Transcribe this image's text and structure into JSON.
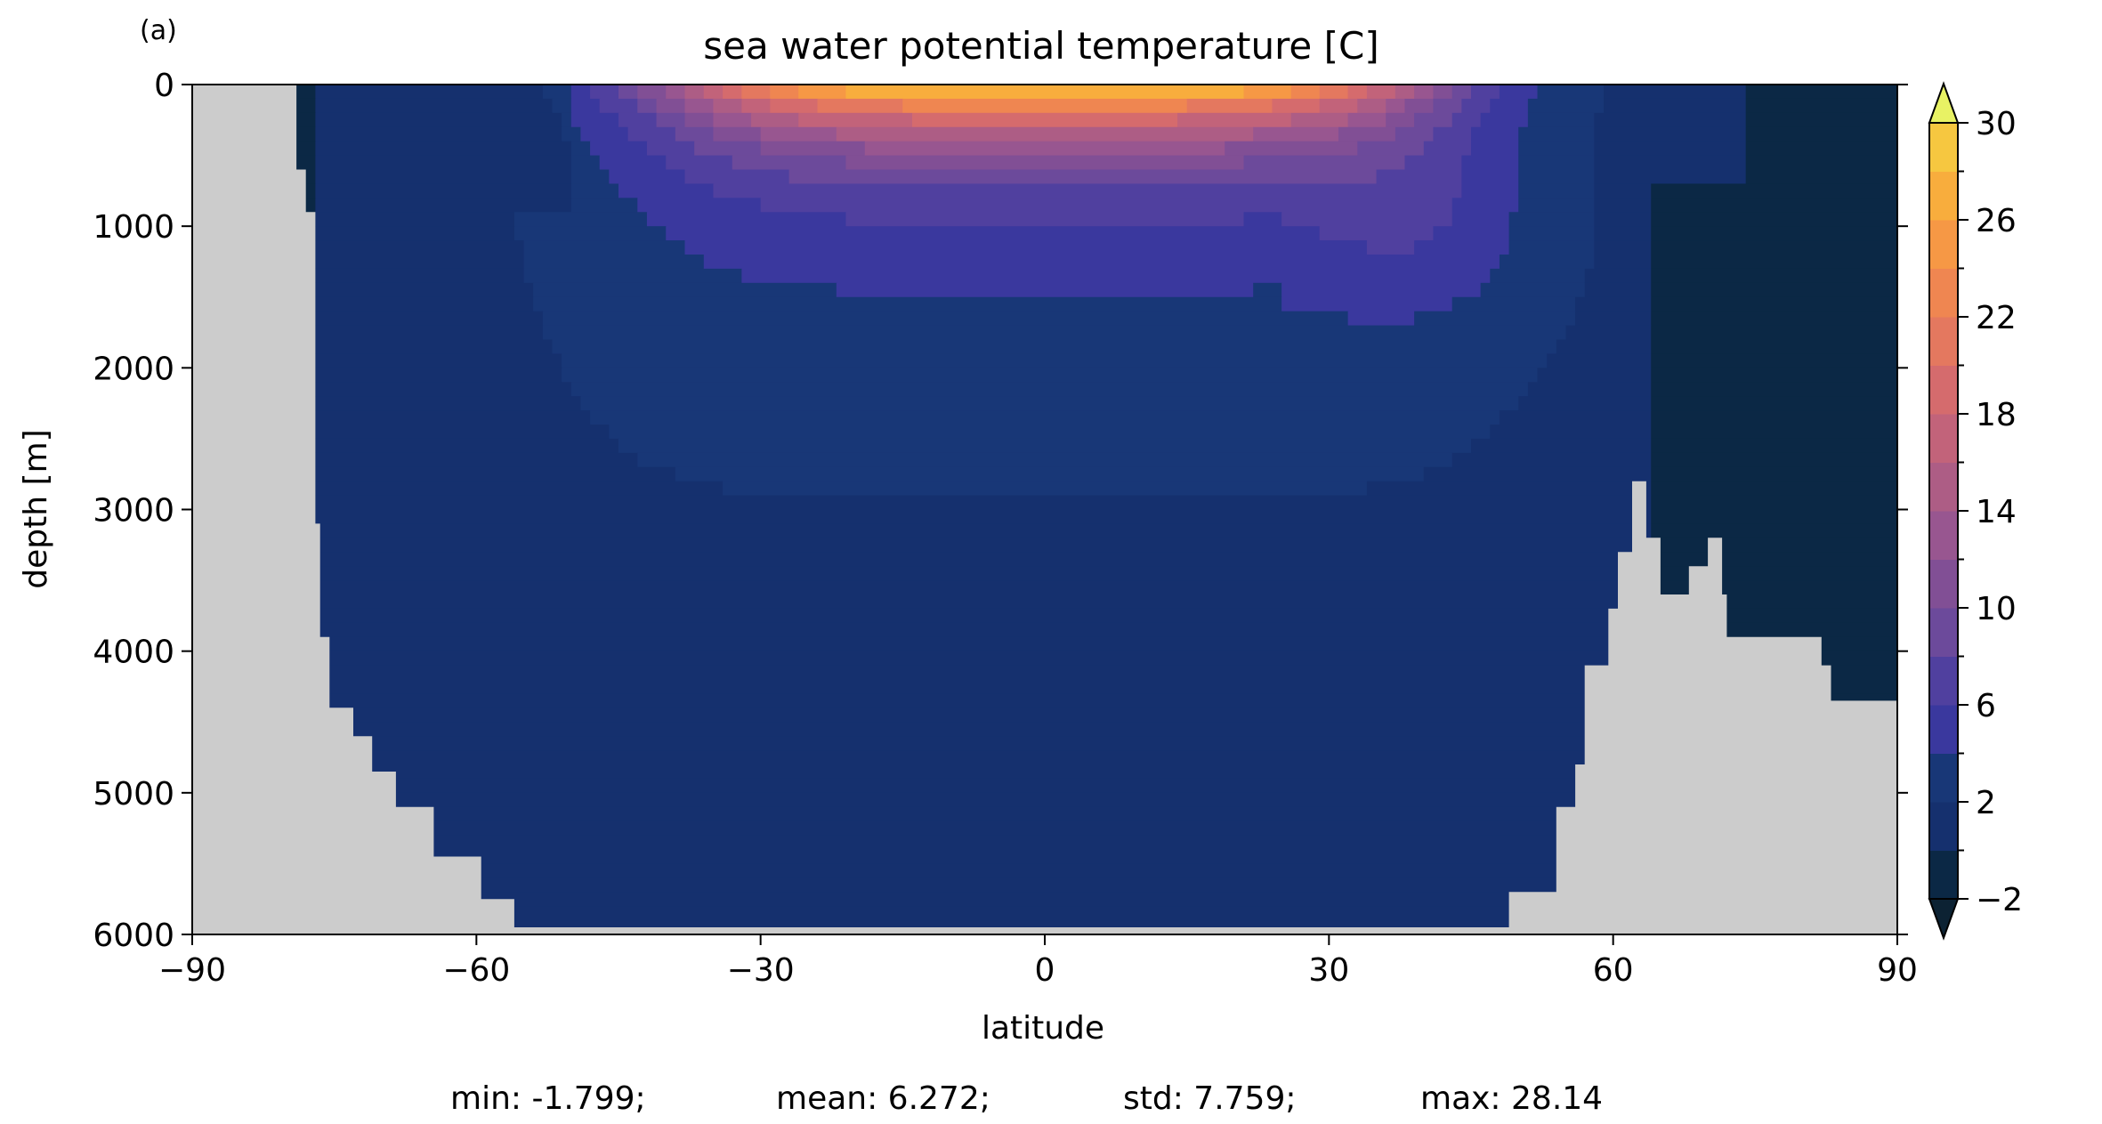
{
  "panel_label": "(a)",
  "chart_data": {
    "type": "heatmap",
    "title": "sea water potential temperature [C]",
    "xlabel": "latitude",
    "ylabel": "depth [m]",
    "xlim": [
      -90,
      90
    ],
    "ylim": [
      0,
      6000
    ],
    "y_inverted": true,
    "x_ticks": [
      -90,
      -60,
      -30,
      0,
      30,
      60,
      90
    ],
    "x_tick_labels": [
      "−90",
      "−60",
      "−30",
      "0",
      "30",
      "60",
      "90"
    ],
    "y_ticks": [
      0,
      1000,
      2000,
      3000,
      4000,
      5000,
      6000
    ],
    "y_tick_labels": [
      "0",
      "1000",
      "2000",
      "3000",
      "4000",
      "5000",
      "6000"
    ],
    "colorbar": {
      "levels": [
        -2,
        0,
        2,
        4,
        6,
        8,
        10,
        12,
        14,
        16,
        18,
        20,
        22,
        24,
        26,
        28,
        30
      ],
      "tick_values": [
        -2,
        2,
        6,
        10,
        14,
        18,
        22,
        26,
        30
      ],
      "tick_labels": [
        "−2",
        "2",
        "6",
        "10",
        "14",
        "18",
        "22",
        "26",
        "30"
      ],
      "extend": "both",
      "colors": [
        "#0b2845",
        "#15306e",
        "#183777",
        "#3a389e",
        "#50409f",
        "#6c4a9b",
        "#814f95",
        "#985690",
        "#ad5d85",
        "#c2637a",
        "#d56b6d",
        "#e4785f",
        "#ef8651",
        "#f69845",
        "#f8ad3d",
        "#f6c740",
        "#eee053"
      ],
      "under_color": "#0c2233",
      "over_color": "#e8f264"
    },
    "land_color": "#cccccc",
    "stats": {
      "min_label": "min: -1.799;",
      "mean_label": "mean: 6.272;",
      "std_label": "std: 7.759;",
      "max_label": "max: 28.14",
      "min": -1.799,
      "mean": 6.272,
      "std": 7.759,
      "max": 28.14
    },
    "land_regions": {
      "antarctica_surface": [
        [
          -90,
          0
        ],
        [
          -79,
          0
        ],
        [
          -79,
          600
        ],
        [
          -78,
          600
        ],
        [
          -78,
          900
        ],
        [
          -77,
          900
        ],
        [
          -77,
          3100
        ],
        [
          -77,
          3100
        ],
        [
          -76.5,
          3100
        ],
        [
          -76.5,
          3900
        ],
        [
          -75.5,
          3900
        ],
        [
          -75.5,
          4400
        ],
        [
          -73,
          4400
        ],
        [
          -73,
          4600
        ],
        [
          -71,
          4600
        ],
        [
          -71,
          4850
        ],
        [
          -68.5,
          4850
        ],
        [
          -68.5,
          5100
        ],
        [
          -64.5,
          5100
        ],
        [
          -64.5,
          5450
        ],
        [
          -59.5,
          5450
        ],
        [
          -59.5,
          5750
        ],
        [
          -56,
          5750
        ],
        [
          -56,
          5950
        ],
        [
          -90,
          5950
        ]
      ],
      "north_rise": [
        [
          49,
          6000
        ],
        [
          49,
          5700
        ],
        [
          54,
          5700
        ],
        [
          54,
          5100
        ],
        [
          56,
          5100
        ],
        [
          56,
          4800
        ],
        [
          57,
          4800
        ],
        [
          57,
          4100
        ],
        [
          59.5,
          4100
        ],
        [
          59.5,
          3700
        ],
        [
          60.5,
          3700
        ],
        [
          60.5,
          3300
        ],
        [
          62,
          3300
        ],
        [
          62,
          2800
        ],
        [
          63.5,
          2800
        ],
        [
          63.5,
          3200
        ],
        [
          65,
          3200
        ],
        [
          65,
          3600
        ],
        [
          68,
          3600
        ],
        [
          68,
          3400
        ],
        [
          70,
          3400
        ],
        [
          70,
          3200
        ],
        [
          71.5,
          3200
        ],
        [
          71.5,
          3600
        ],
        [
          72,
          3600
        ],
        [
          72,
          3900
        ],
        [
          82,
          3900
        ],
        [
          82,
          4100
        ],
        [
          83,
          4100
        ],
        [
          83,
          4350
        ],
        [
          90,
          4350
        ],
        [
          90,
          6000
        ]
      ],
      "bottom_outline": [
        [
          -90,
          5950
        ],
        [
          -90,
          6000
        ],
        [
          90,
          6000
        ],
        [
          90,
          5950
        ],
        [
          -90,
          5950
        ]
      ]
    },
    "isotherms_upper": [
      {
        "value": 26,
        "lat": [
          -12,
          22
        ],
        "depth": 60
      },
      {
        "value": 22,
        "lat": [
          -20,
          28
        ],
        "depth": 120
      },
      {
        "value": 18,
        "lat": [
          -28,
          34
        ],
        "depth": 200
      },
      {
        "value": 14,
        "lat": [
          -34,
          39
        ],
        "depth": 330
      },
      {
        "value": 10,
        "lat": [
          -40,
          44
        ],
        "depth": 520
      },
      {
        "value": 6,
        "lat": [
          -54,
          55
        ],
        "depth": 1100
      }
    ]
  }
}
